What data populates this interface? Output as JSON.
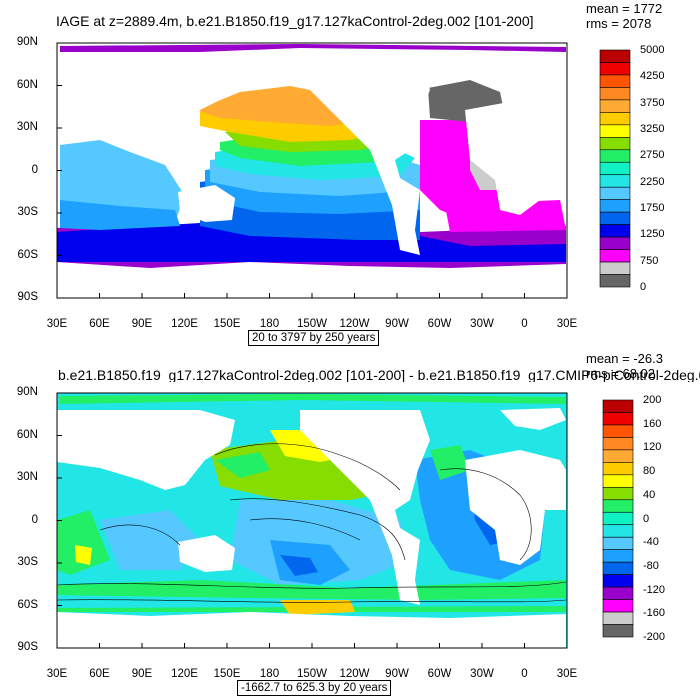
{
  "colorbar_colors": [
    "#666666",
    "#cccccc",
    "#ff00ff",
    "#9900cc",
    "#0000ee",
    "#0066ee",
    "#1ea0ff",
    "#55c8ff",
    "#22e6e6",
    "#11f2c4",
    "#22ee66",
    "#88dd00",
    "#ffff00",
    "#ffcc00",
    "#ffaa33",
    "#ff8822",
    "#ff5500",
    "#ee0000",
    "#bb0000"
  ],
  "chart_data": [
    {
      "type": "heatmap",
      "title": "IAGE at z=2889.4m, b.e21.B1850.f19_g17.127kaControl-2deg.002 [101-200]",
      "stats": [
        "mean = 1772",
        "rms = 2078"
      ],
      "range_label": "20 to 3797 by 250 years",
      "x_ticks": [
        "30E",
        "60E",
        "90E",
        "120E",
        "150E",
        "180",
        "150W",
        "120W",
        "90W",
        "60W",
        "30W",
        "0",
        "30E"
      ],
      "y_ticks": [
        "90N",
        "60N",
        "30N",
        "0",
        "30S",
        "60S",
        "90S"
      ],
      "colorbar_labels": [
        "5000",
        "4250",
        "3750",
        "3250",
        "2750",
        "2250",
        "1750",
        "1250",
        "750",
        "0"
      ],
      "colorbar_values": [
        0,
        250,
        500,
        750,
        1000,
        1250,
        1500,
        1750,
        2000,
        2250,
        2500,
        2750,
        3000,
        3250,
        3500,
        3750,
        4000,
        4250,
        4500,
        5000
      ]
    },
    {
      "type": "heatmap",
      "title": "b.e21.B1850.f19_g17.127kaControl-2deg.002 [101-200] - b.e21.B1850.f19_g17.CMIP6-piControl-2deg.0",
      "stats": [
        "mean = -26.3",
        "rms = 68.02"
      ],
      "range_label": "-1662.7 to 625.3 by 20 years",
      "x_ticks": [
        "30E",
        "60E",
        "90E",
        "120E",
        "150E",
        "180",
        "150W",
        "120W",
        "90W",
        "60W",
        "30W",
        "0",
        "30E"
      ],
      "y_ticks": [
        "90N",
        "60N",
        "30N",
        "0",
        "30S",
        "60S",
        "90S"
      ],
      "colorbar_labels": [
        "200",
        "160",
        "120",
        "80",
        "40",
        "0",
        "-40",
        "-80",
        "-120",
        "-160",
        "-200"
      ],
      "colorbar_values": [
        -200,
        -180,
        -160,
        -140,
        -120,
        -100,
        -80,
        -60,
        -40,
        -20,
        0,
        20,
        40,
        60,
        80,
        100,
        120,
        140,
        160,
        180,
        200
      ]
    }
  ]
}
